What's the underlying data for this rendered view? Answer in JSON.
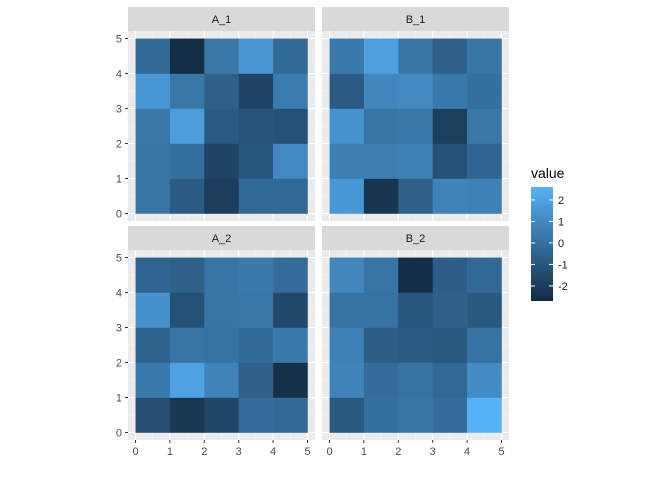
{
  "chart_data": {
    "type": "heatmap",
    "title": "",
    "xlabel": "",
    "ylabel": "",
    "xlim": [
      0,
      5
    ],
    "ylim": [
      0,
      5
    ],
    "x_ticks": [
      "0",
      "1",
      "2",
      "3",
      "4",
      "5"
    ],
    "y_ticks": [
      "0",
      "1",
      "2",
      "3",
      "4",
      "5"
    ],
    "grid": true,
    "legend": {
      "title": "value",
      "position": "right",
      "range": [
        -2.7,
        2.6
      ],
      "ticks": [
        "2",
        "1",
        "0",
        "-1",
        "-2"
      ],
      "tick_values": [
        2,
        1,
        0,
        -1,
        -2
      ],
      "color_low": "#132B43",
      "color_high": "#56B1F7"
    },
    "panels": [
      {
        "name": "A_1",
        "values": [
          [
            0.2,
            -0.8,
            -2.0,
            -0.3,
            -0.3
          ],
          [
            0.2,
            0.0,
            -1.7,
            -1.0,
            1.0
          ],
          [
            0.3,
            1.8,
            -0.8,
            -1.1,
            -1.2
          ],
          [
            1.6,
            0.3,
            -0.6,
            -1.7,
            0.5
          ],
          [
            -0.2,
            -2.6,
            0.3,
            1.5,
            -0.2
          ]
        ]
      },
      {
        "name": "B_1",
        "values": [
          [
            1.6,
            -2.3,
            -0.6,
            0.8,
            0.7
          ],
          [
            0.6,
            0.6,
            0.7,
            -1.2,
            -0.4
          ],
          [
            1.4,
            0.2,
            0.3,
            -1.9,
            0.3
          ],
          [
            -0.8,
            0.9,
            1.0,
            0.4,
            0.0
          ],
          [
            0.4,
            1.9,
            0.2,
            -0.6,
            0.2
          ]
        ]
      },
      {
        "name": "A_2",
        "values": [
          [
            -1.3,
            -2.2,
            -1.6,
            -0.1,
            -0.2
          ],
          [
            0.4,
            2.0,
            0.8,
            -0.6,
            -2.5
          ],
          [
            -0.5,
            0.2,
            0.1,
            -0.2,
            0.4
          ],
          [
            1.3,
            -1.2,
            0.2,
            0.3,
            -1.5
          ],
          [
            -0.4,
            -0.6,
            0.2,
            0.4,
            -0.1
          ]
        ]
      },
      {
        "name": "B_2",
        "values": [
          [
            -0.9,
            0.0,
            0.2,
            -0.1,
            2.6
          ],
          [
            0.8,
            -0.1,
            0.1,
            -0.3,
            1.1
          ],
          [
            0.7,
            -0.7,
            -0.8,
            -0.9,
            0.1
          ],
          [
            0.1,
            0.1,
            -1.0,
            -0.6,
            -0.9
          ],
          [
            0.9,
            0.2,
            -2.6,
            -0.7,
            -0.3
          ]
        ]
      }
    ]
  }
}
